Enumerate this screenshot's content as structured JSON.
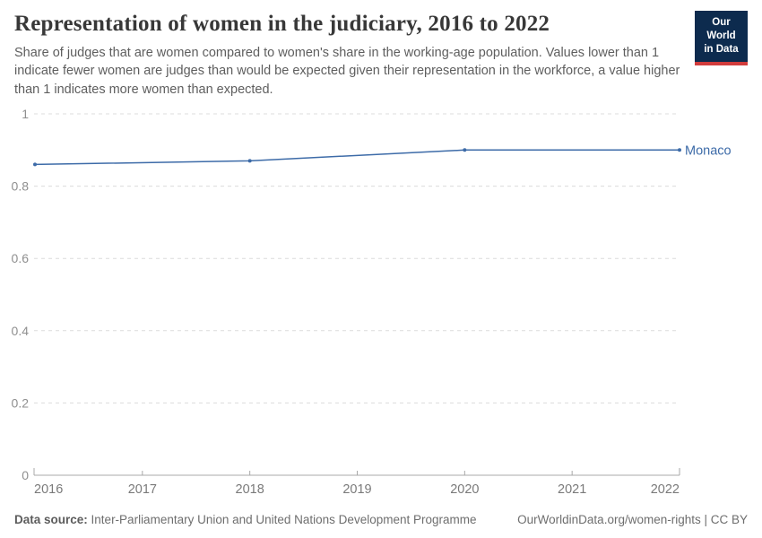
{
  "header": {
    "title": "Representation of women in the judiciary, 2016 to 2022",
    "subtitle": "Share of judges that are women compared to women's share in the working-age population. Values lower than 1 indicate fewer women are judges than would be expected given their representation in the workforce, a value higher than 1 indicates more women than expected.",
    "logo": {
      "line1": "Our World",
      "line2": "in Data",
      "background": "#0d2b4e",
      "stripe": "#d13c3c"
    }
  },
  "chart_data": {
    "type": "line",
    "title": "Representation of women in the judiciary, 2016 to 2022",
    "x": [
      2016,
      2018,
      2020,
      2022
    ],
    "series": [
      {
        "name": "Monaco",
        "color": "#3d6ba8",
        "values": [
          0.86,
          0.87,
          0.9,
          0.9
        ]
      }
    ],
    "xlabel": "",
    "ylabel": "",
    "xlim": [
      2016,
      2022
    ],
    "ylim": [
      0,
      1
    ],
    "x_ticks": [
      {
        "value": 2016,
        "label": "2016"
      },
      {
        "value": 2017,
        "label": "2017"
      },
      {
        "value": 2018,
        "label": "2018"
      },
      {
        "value": 2019,
        "label": "2019"
      },
      {
        "value": 2020,
        "label": "2020"
      },
      {
        "value": 2021,
        "label": "2021"
      },
      {
        "value": 2022,
        "label": "2022"
      }
    ],
    "y_ticks": [
      {
        "value": 0,
        "label": "0"
      },
      {
        "value": 0.2,
        "label": "0.2"
      },
      {
        "value": 0.4,
        "label": "0.4"
      },
      {
        "value": 0.6,
        "label": "0.6"
      },
      {
        "value": 0.8,
        "label": "0.8"
      },
      {
        "value": 1,
        "label": "1"
      }
    ],
    "grid": "horizontal-dashed",
    "legend": "line-end-label"
  },
  "footer": {
    "datasource_label": "Data source:",
    "datasource": "Inter-Parliamentary Union and United Nations Development Programme",
    "link": "OurWorldinData.org/women-rights | CC BY"
  },
  "colors": {
    "line": "#3d6ba8",
    "grid": "#dcdcdc",
    "axis": "#a8a8a8",
    "y_tick_label": "#8f8f8f",
    "x_tick_label": "#7a7a7a"
  }
}
